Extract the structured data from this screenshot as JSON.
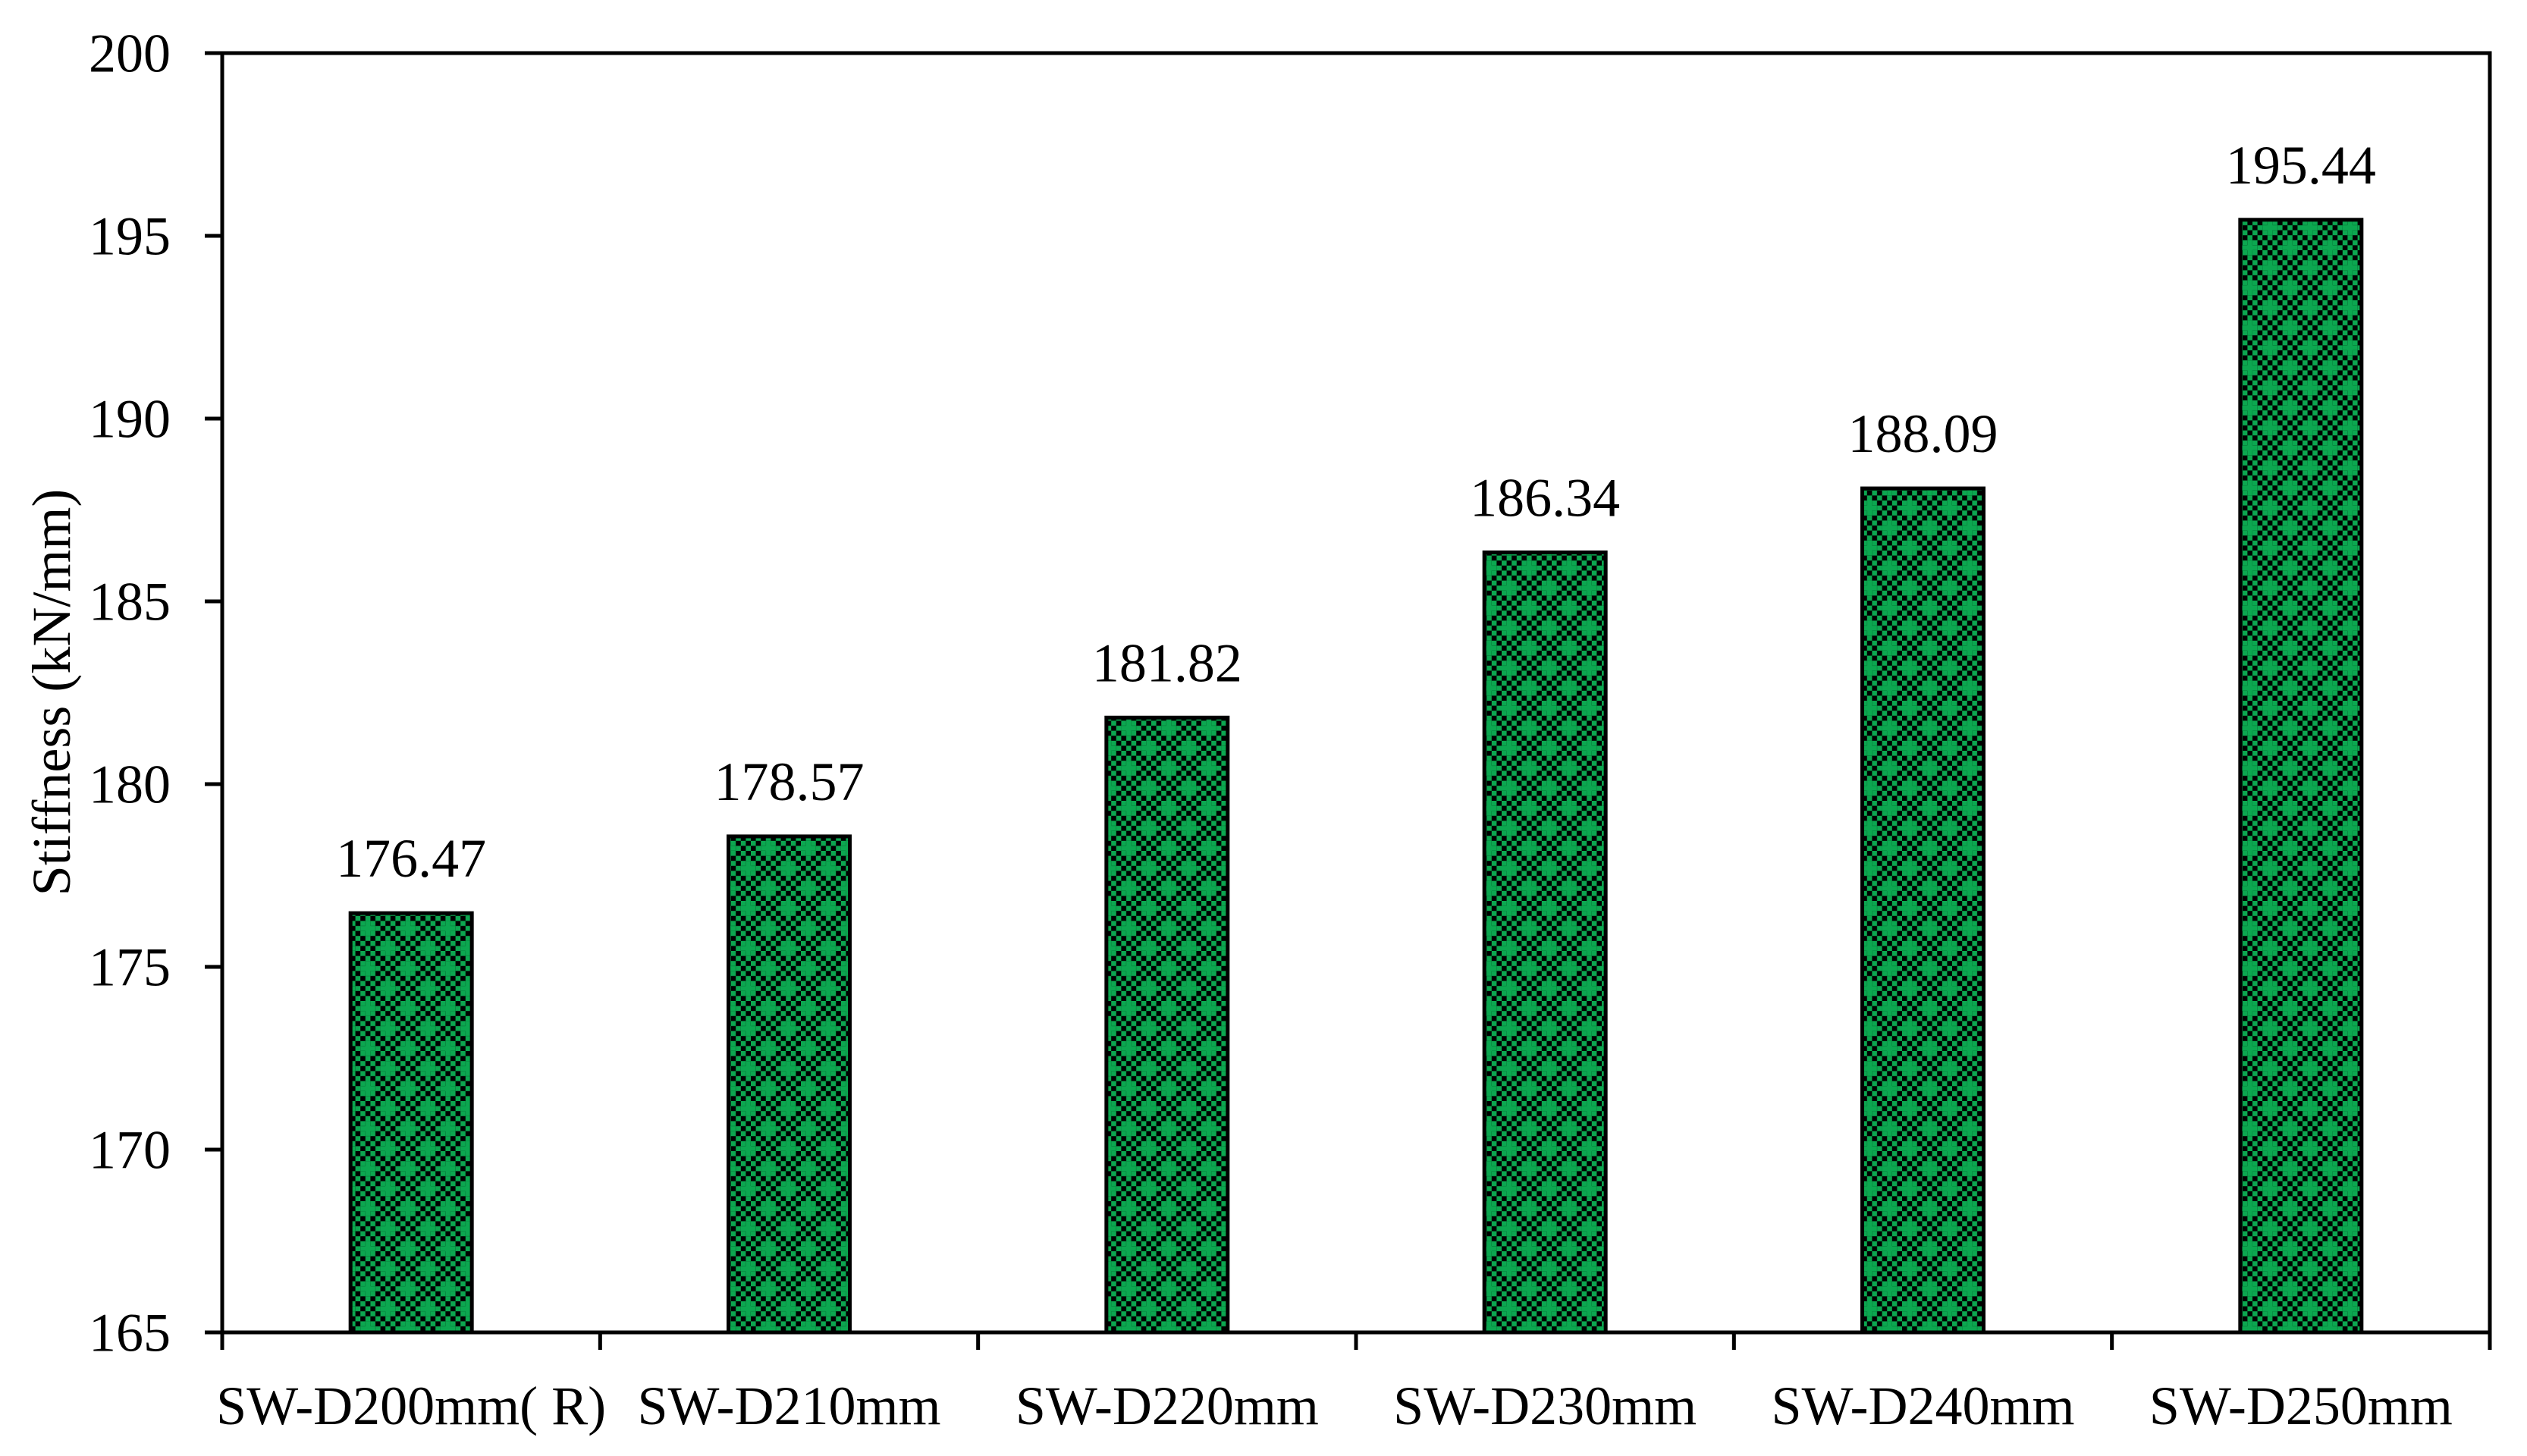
{
  "chart_data": {
    "type": "bar",
    "title": "",
    "xlabel": "",
    "ylabel": "Stiffness (kN/mm)",
    "categories": [
      "SW-D200mm( R)",
      "SW-D210mm",
      "SW-D220mm",
      "SW-D230mm",
      "SW-D240mm",
      "SW-D250mm"
    ],
    "values": [
      176.47,
      178.57,
      181.82,
      186.34,
      188.09,
      195.44
    ],
    "data_labels": [
      "176.47",
      "178.57",
      "181.82",
      "186.34",
      "188.09",
      "195.44"
    ],
    "ylim": [
      165,
      200
    ],
    "yticks": [
      165,
      170,
      175,
      180,
      185,
      190,
      195,
      200
    ],
    "grid": false,
    "legend": "none",
    "bar_pattern": "checkerboard-with-plus-motif",
    "colors": {
      "bar_green": "#0CA750",
      "pattern_background": "#000000",
      "bar_border": "#000000",
      "axis": "#000000",
      "text": "#000000",
      "page_background": "#ffffff"
    }
  }
}
